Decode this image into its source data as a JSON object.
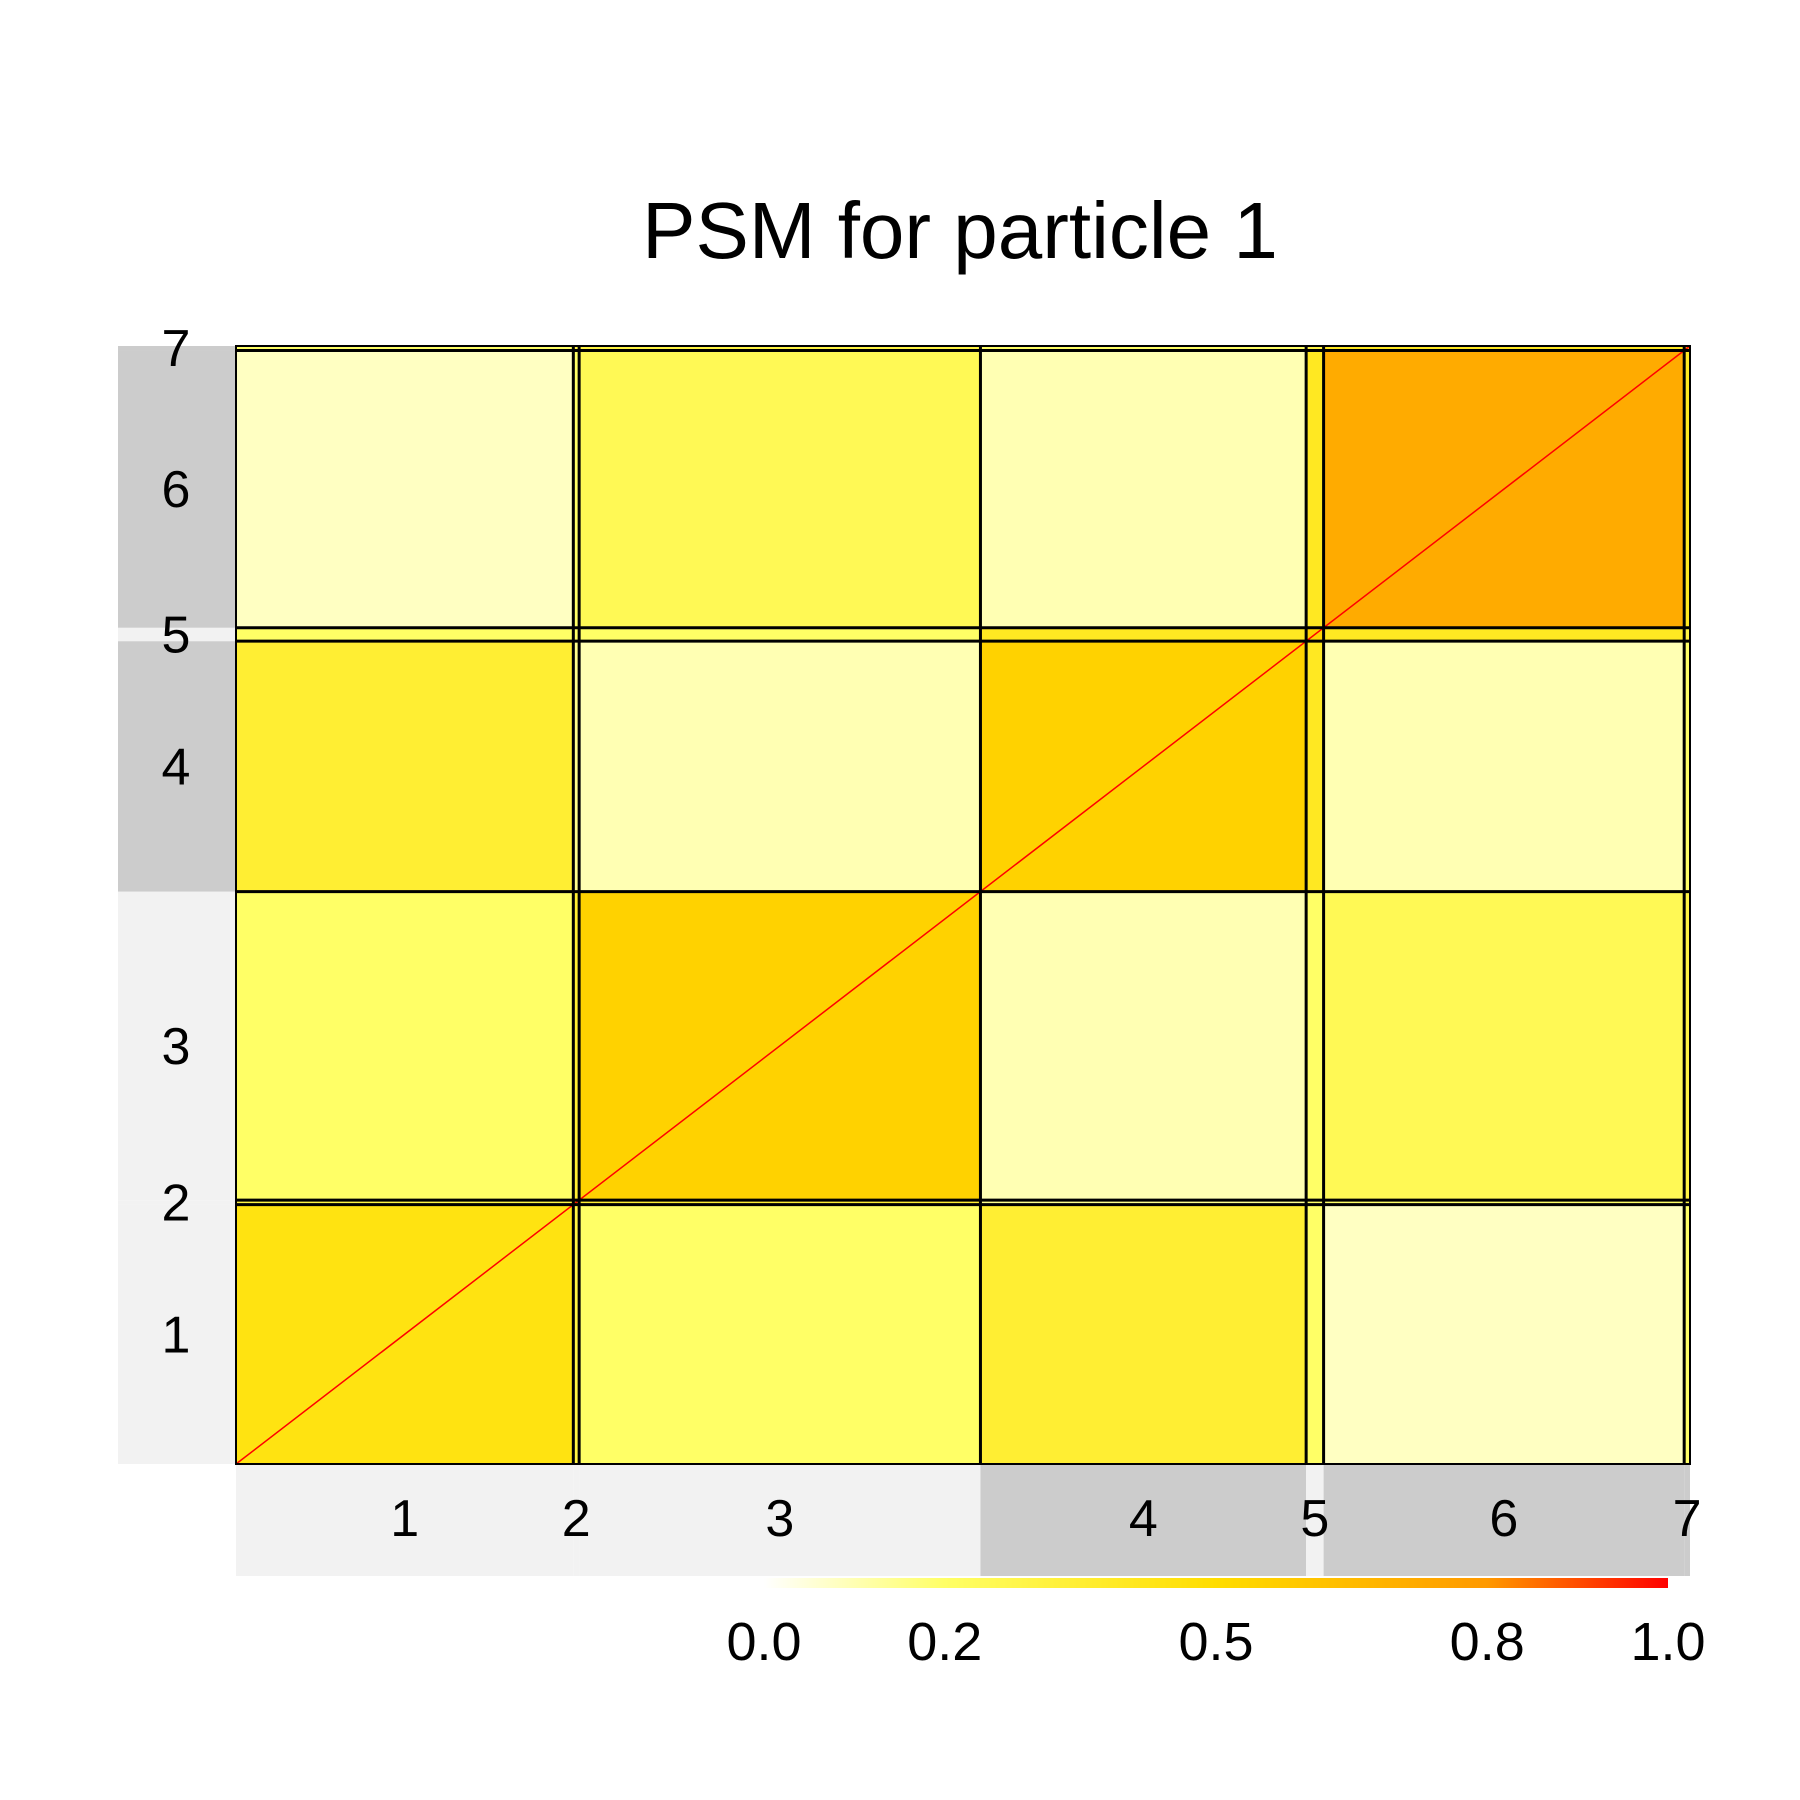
{
  "chart_data": {
    "type": "heatmap",
    "title": "PSM for particle 1",
    "xlabel": "",
    "ylabel": "",
    "clusters": [
      {
        "label": "1",
        "size": 58
      },
      {
        "label": "2",
        "size": 1
      },
      {
        "label": "3",
        "size": 69
      },
      {
        "label": "4",
        "size": 56
      },
      {
        "label": "5",
        "size": 3
      },
      {
        "label": "6",
        "size": 62
      },
      {
        "label": "7",
        "size": 1
      }
    ],
    "block_similarity": [
      [
        0.45,
        0.3,
        0.2,
        0.35,
        0.2,
        0.08,
        0.2
      ],
      [
        0.3,
        0.5,
        0.35,
        0.15,
        0.2,
        0.2,
        0.3
      ],
      [
        0.2,
        0.35,
        0.55,
        0.1,
        0.2,
        0.25,
        0.3
      ],
      [
        0.35,
        0.15,
        0.1,
        0.55,
        0.4,
        0.1,
        0.2
      ],
      [
        0.2,
        0.2,
        0.2,
        0.4,
        0.55,
        0.4,
        0.3
      ],
      [
        0.08,
        0.2,
        0.25,
        0.1,
        0.4,
        0.72,
        0.4
      ],
      [
        0.2,
        0.3,
        0.3,
        0.2,
        0.3,
        0.4,
        0.6
      ]
    ],
    "diagonal_value": 1.0,
    "colorbar": {
      "min": 0.0,
      "max": 1.0,
      "ticks": [
        "0.0",
        "0.2",
        "0.5",
        "0.8",
        "1.0"
      ],
      "tick_values": [
        0.0,
        0.2,
        0.5,
        0.8,
        1.0
      ],
      "colors": [
        "#ffffff",
        "#ffff66",
        "#ffdd00",
        "#ff9900",
        "#ff0000"
      ]
    }
  }
}
